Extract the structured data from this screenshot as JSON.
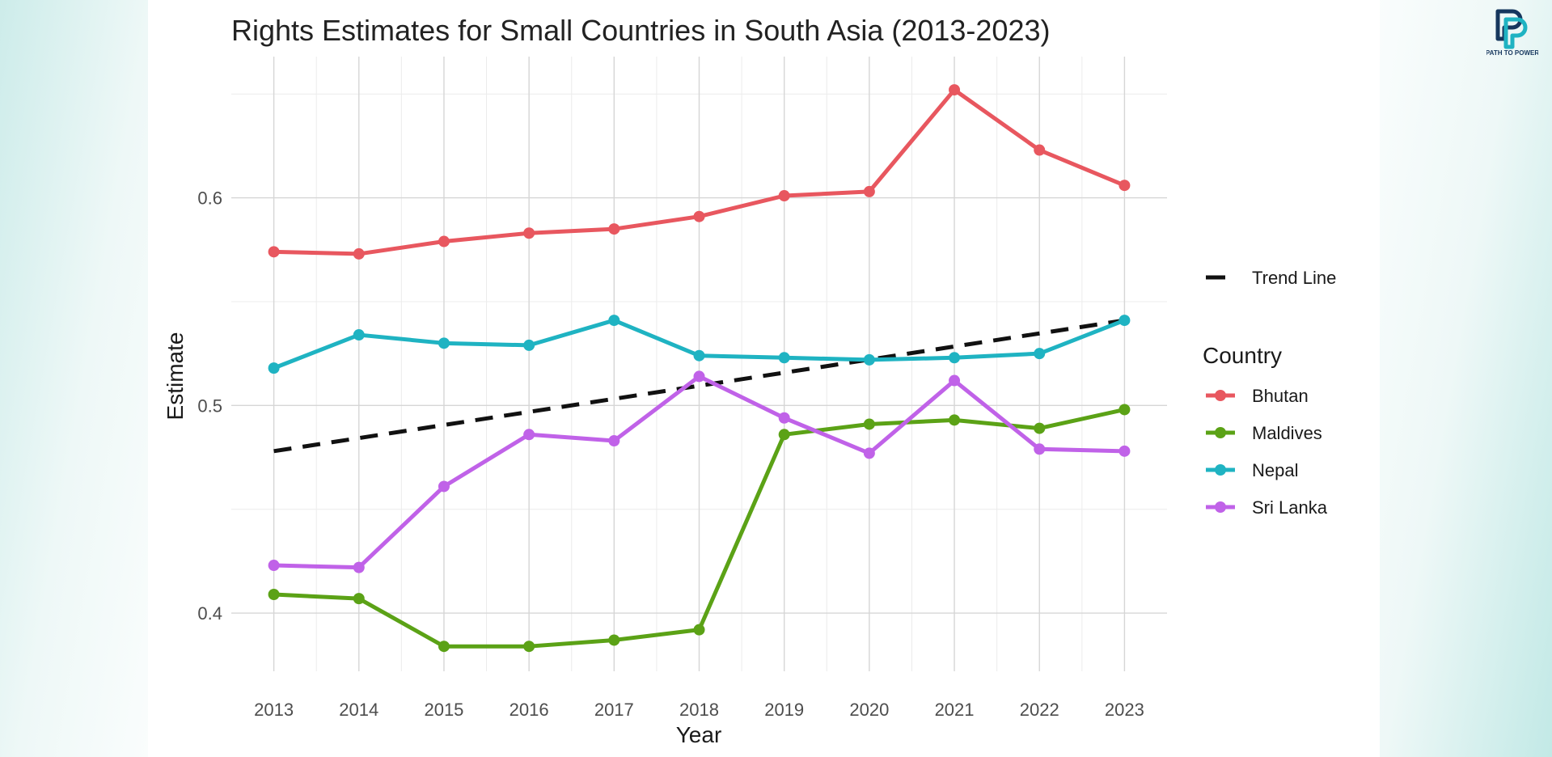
{
  "chart_data": {
    "type": "line",
    "title": "Rights Estimates for Small Countries in South Asia (2013-2023)",
    "xlabel": "Year",
    "ylabel": "Estimate",
    "x": [
      2013,
      2014,
      2015,
      2016,
      2017,
      2018,
      2019,
      2020,
      2021,
      2022,
      2023
    ],
    "x_tick_labels": [
      "2013",
      "2014",
      "2015",
      "2016",
      "2017",
      "2018",
      "2019",
      "2020",
      "2021",
      "2022",
      "2023"
    ],
    "y_tick_values": [
      0.4,
      0.5,
      0.6
    ],
    "y_tick_labels": [
      "0.4",
      "0.5",
      "0.6"
    ],
    "ylim": [
      0.372,
      0.668
    ],
    "xlim": [
      2012.5,
      2023.5
    ],
    "grid": true,
    "legend_title": "Country",
    "legend_position": "right",
    "series": [
      {
        "name": "Bhutan",
        "color": "#e8575f",
        "values": [
          0.574,
          0.573,
          0.579,
          0.583,
          0.585,
          0.591,
          0.601,
          0.603,
          0.652,
          0.623,
          0.606
        ]
      },
      {
        "name": "Maldives",
        "color": "#5ba216",
        "values": [
          0.409,
          0.407,
          0.384,
          0.384,
          0.387,
          0.392,
          0.486,
          0.491,
          0.493,
          0.489,
          0.498
        ]
      },
      {
        "name": "Nepal",
        "color": "#1fb3c2",
        "values": [
          0.518,
          0.534,
          0.53,
          0.529,
          0.541,
          0.524,
          0.523,
          0.522,
          0.523,
          0.525,
          0.541
        ]
      },
      {
        "name": "Sri Lanka",
        "color": "#c062e8",
        "values": [
          0.423,
          0.422,
          0.461,
          0.486,
          0.483,
          0.514,
          0.494,
          0.477,
          0.512,
          0.479,
          0.478
        ]
      }
    ],
    "trend_line": {
      "name": "Trend Line",
      "color": "#111111",
      "style": "dashed",
      "start": [
        2013,
        0.478
      ],
      "end": [
        2023,
        0.541
      ]
    }
  },
  "logo": {
    "text": "PATH TO POWER",
    "colors": [
      "#16375e",
      "#1fb3c2"
    ]
  }
}
